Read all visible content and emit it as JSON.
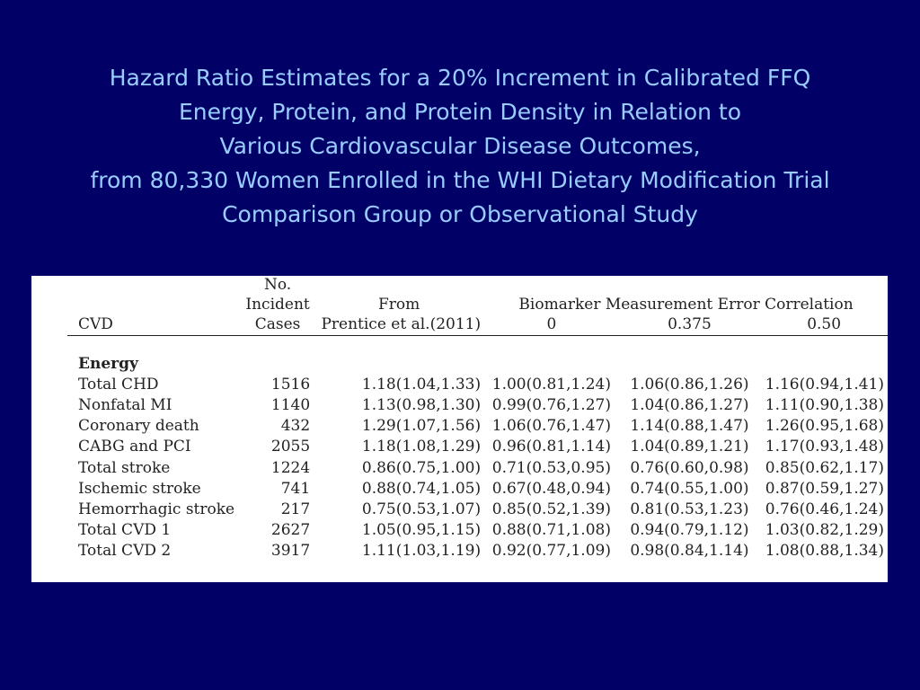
{
  "title_lines": [
    "Hazard Ratio Estimates for a 20% Increment in Calibrated FFQ",
    "Energy, Protein, and Protein Density in Relation to",
    "Various Cardiovascular Disease Outcomes,",
    "from 80,330 Women Enrolled in the WHI Dietary Modification Trial",
    "Comparison Group or Observational Study"
  ],
  "table": {
    "header": {
      "row1_cases": "No.",
      "row2_cases": "Incident",
      "row2_prentice": "From",
      "row2_biomarker": "Biomarker Measurement Error Correlation",
      "row3_cvd": "CVD",
      "row3_cases": "Cases",
      "row3_prentice": "Prentice et al.(2011)",
      "row3_c0": "0",
      "row3_c1": "0.375",
      "row3_c2": "0.50"
    },
    "group": "Energy",
    "rows": [
      [
        "Total CHD",
        "1516",
        "1.18(1.04,1.33)",
        "1.00(0.81,1.24)",
        "1.06(0.86,1.26)",
        "1.16(0.94,1.41)"
      ],
      [
        "Nonfatal MI",
        "1140",
        "1.13(0.98,1.30)",
        "0.99(0.76,1.27)",
        "1.04(0.86,1.27)",
        "1.11(0.90,1.38)"
      ],
      [
        "Coronary death",
        "432",
        "1.29(1.07,1.56)",
        "1.06(0.76,1.47)",
        "1.14(0.88,1.47)",
        "1.26(0.95,1.68)"
      ],
      [
        "CABG and PCI",
        "2055",
        "1.18(1.08,1.29)",
        "0.96(0.81,1.14)",
        "1.04(0.89,1.21)",
        "1.17(0.93,1.48)"
      ],
      [
        "Total stroke",
        "1224",
        "0.86(0.75,1.00)",
        "0.71(0.53,0.95)",
        "0.76(0.60,0.98)",
        "0.85(0.62,1.17)"
      ],
      [
        "Ischemic stroke",
        "741",
        "0.88(0.74,1.05)",
        "0.67(0.48,0.94)",
        "0.74(0.55,1.00)",
        "0.87(0.59,1.27)"
      ],
      [
        "Hemorrhagic stroke",
        "217",
        "0.75(0.53,1.07)",
        "0.85(0.52,1.39)",
        "0.81(0.53,1.23)",
        "0.76(0.46,1.24)"
      ],
      [
        "Total CVD 1",
        "2627",
        "1.05(0.95,1.15)",
        "0.88(0.71,1.08)",
        "0.94(0.79,1.12)",
        "1.03(0.82,1.29)"
      ],
      [
        "Total CVD 2",
        "3917",
        "1.11(1.03,1.19)",
        "0.92(0.77,1.09)",
        "0.98(0.84,1.14)",
        "1.08(0.88,1.34)"
      ]
    ]
  }
}
